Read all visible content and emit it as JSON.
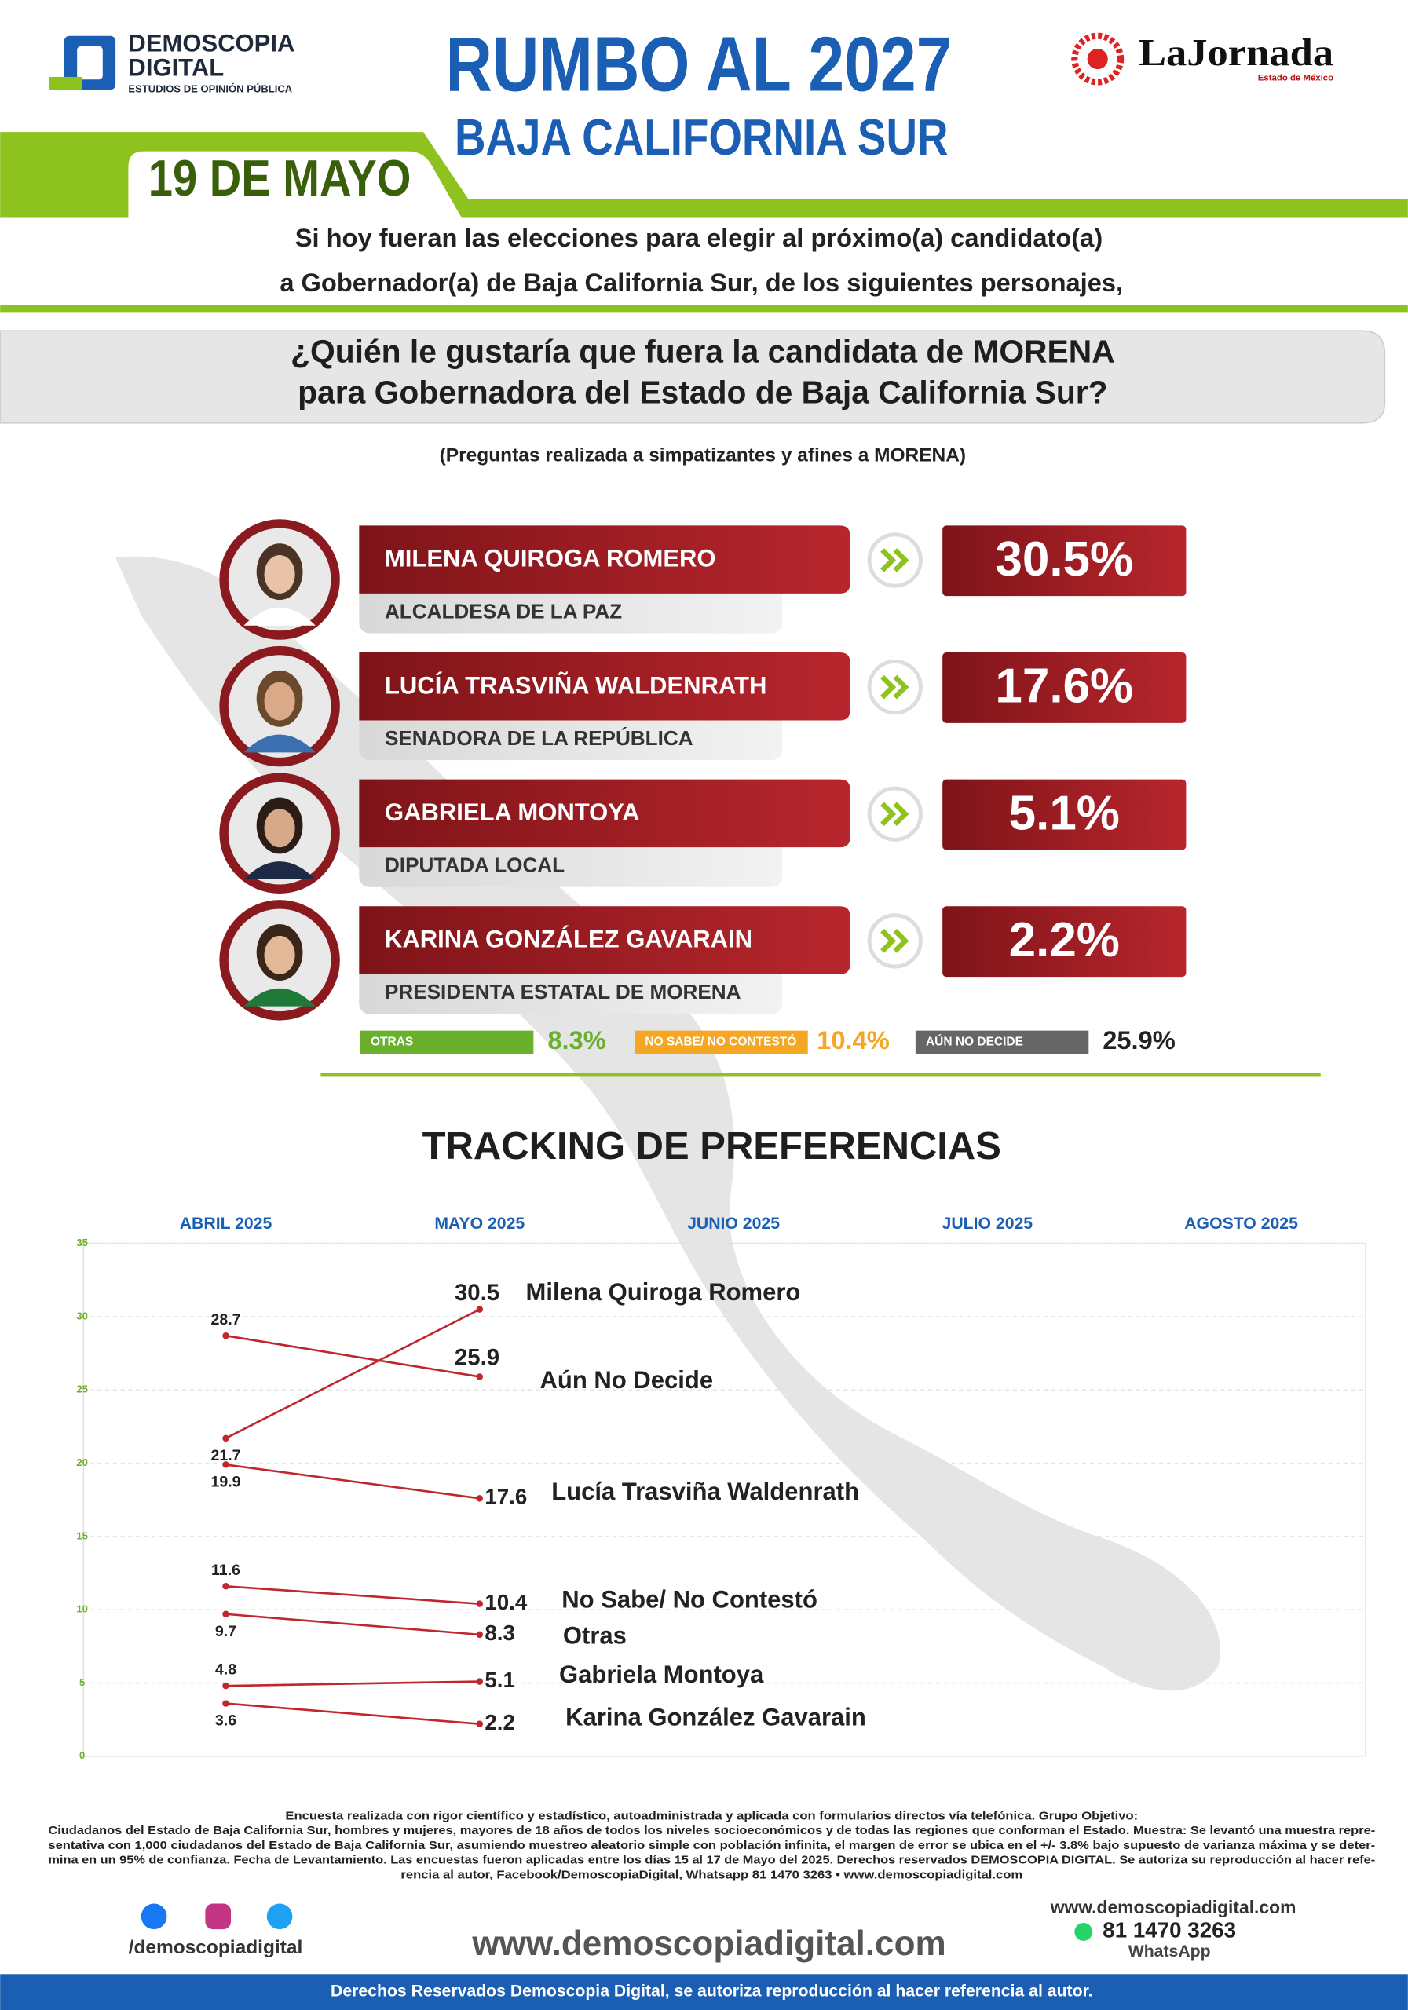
{
  "header": {
    "brand": "DEMOSCOPIA",
    "brand2": "DIGITAL",
    "brand_sub": "ESTUDIOS DE OPINIÓN PÚBLICA",
    "title": "RUMBO AL 2027",
    "subtitle": "BAJA CALIFORNIA SUR",
    "date": "19 DE MAYO",
    "partner": "LaJornada",
    "partner_sub": "Estado de México"
  },
  "intro": [
    "Si hoy fueran las elecciones para elegir al próximo(a) candidato(a)",
    "a Gobernador(a) de Baja California Sur, de los siguientes personajes,"
  ],
  "question": [
    "¿Quién le gustaría que fuera la candidata de MORENA",
    "para Gobernadora del Estado de Baja California Sur?"
  ],
  "note": "(Preguntas realizada a simpatizantes y afines a MORENA)",
  "candidates": [
    {
      "name": "MILENA QUIROGA ROMERO",
      "role": "ALCALDESA DE LA PAZ",
      "result": "30.5%"
    },
    {
      "name": "LUCÍA TRASVIÑA WALDENRATH",
      "role": "SENADORA DE LA REPÚBLICA",
      "result": "17.6%"
    },
    {
      "name": "GABRIELA MONTOYA",
      "role": "DIPUTADA LOCAL",
      "result": "5.1%"
    },
    {
      "name": "KARINA GONZÁLEZ GAVARAIN",
      "role": "PRESIDENTA ESTATAL DE MORENA",
      "result": "2.2%"
    }
  ],
  "others": [
    {
      "label": "OTRAS",
      "result": "8.3%"
    },
    {
      "label": "NO SABE/ NO CONTESTÓ",
      "result": "10.4%"
    },
    {
      "label": "AÚN NO DECIDE",
      "result": "25.9%"
    }
  ],
  "chart_data": {
    "type": "line",
    "title": "TRACKING DE PREFERENCIAS",
    "categories": [
      "ABRIL 2025",
      "MAYO 2025",
      "JUNIO 2025",
      "JULIO 2025",
      "AGOSTO 2025"
    ],
    "ylim": [
      0,
      35
    ],
    "yticks": [
      0,
      5,
      10,
      15,
      20,
      25,
      30,
      35
    ],
    "grid": true,
    "series": [
      {
        "name": "Milena Quiroga Romero",
        "color": "#c0262d",
        "values": [
          21.7,
          30.5,
          null,
          null,
          null
        ]
      },
      {
        "name": "Aún No Decide",
        "color": "#c0262d",
        "values": [
          28.7,
          25.9,
          null,
          null,
          null
        ]
      },
      {
        "name": "Lucía Trasviña Waldenrath",
        "color": "#c0262d",
        "values": [
          19.9,
          17.6,
          null,
          null,
          null
        ]
      },
      {
        "name": "No Sabe/ No Contestó",
        "color": "#c0262d",
        "values": [
          11.6,
          10.4,
          null,
          null,
          null
        ]
      },
      {
        "name": "Otras",
        "color": "#c0262d",
        "values": [
          9.7,
          8.3,
          null,
          null,
          null
        ]
      },
      {
        "name": "Gabriela Montoya",
        "color": "#c0262d",
        "values": [
          4.8,
          5.1,
          null,
          null,
          null
        ]
      },
      {
        "name": "Karina González Gavarain",
        "color": "#c0262d",
        "values": [
          3.6,
          2.2,
          null,
          null,
          null
        ]
      }
    ]
  },
  "footer": {
    "disclaimer": [
      "Encuesta realizada con rigor científico y estadístico, autoadministrada y aplicada con formularios directos vía telefónica. Grupo Objetivo:",
      "Ciudadanos del Estado de Baja California Sur, hombres y mujeres, mayores de 18 años de todos los niveles socioeconómicos y de todas las regiones que conforman el Estado. Muestra: Se levantó una muestra repre-",
      "sentativa con 1,000 ciudadanos del Estado de Baja California Sur, asumiendo muestreo aleatorio simple con población infinita, el margen de error se ubica en el +/- 3.8% bajo supuesto de varianza máxima y se deter-",
      "mina en un 95% de confianza. Fecha de Levantamiento. Las encuestas fueron aplicadas entre los días 15 al 17 de Mayo del 2025. Derechos reservados DEMOSCOPIA DIGITAL. Se autoriza su reproducción al hacer refe-",
      "rencia al autor, Facebook/DemoscopiaDigital, Whatsapp 81 1470 3263 • www.demoscopiadigital.com"
    ],
    "social": "/demoscopiadigital",
    "website": "www.demoscopiadigital.com",
    "contact_site": "www.demoscopiadigital.com",
    "phone": "81 1470 3263",
    "whatsapp": "WhatsApp",
    "rights": "Derechos Reservados Demoscopia Digital, se autoriza reproducción al hacer referencia al autor."
  }
}
